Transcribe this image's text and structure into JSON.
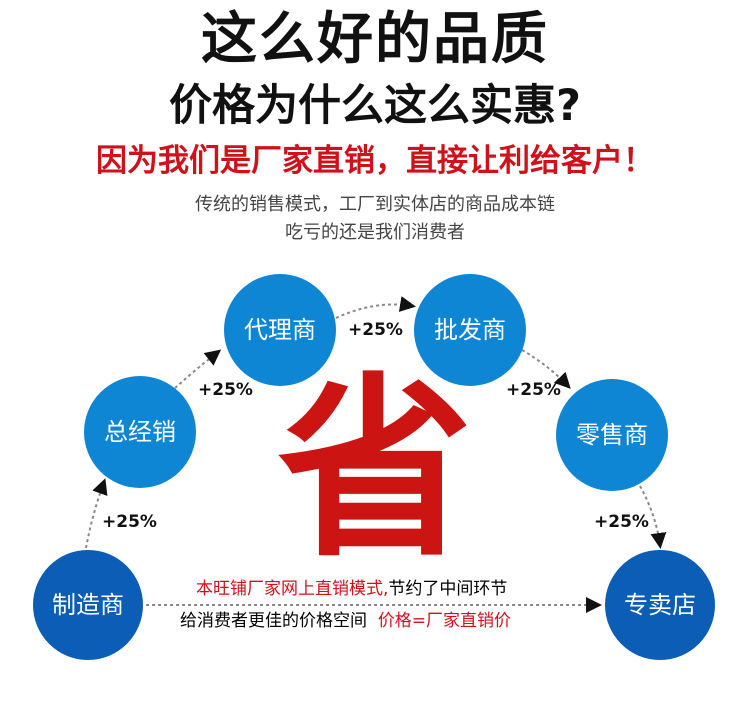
{
  "headline": "这么好的品质",
  "subheadline": "价格为什么这么实惠?",
  "tagline": "因为我们是厂家直销，直接让利给客户！",
  "desc_line1": "传统的销售模式，工厂到实体店的商品成本链",
  "desc_line2": "吃亏的还是我们消费者",
  "nodes": [
    "制造商",
    "总经销",
    "代理商",
    "批发商",
    "零售商",
    "专卖店"
  ],
  "markup": "+25%",
  "center_char": "省",
  "bottom": {
    "line1_red": "本旺铺厂家网上直销模式,",
    "line1_black": "节约了中间环节",
    "line2_black": "给消费者更佳的价格空间",
    "line2_red": "价格=厂家直销价"
  },
  "colors": {
    "circle": "#0e86d4",
    "circle_dark": "#0b5db5",
    "red": "#d0111b"
  }
}
